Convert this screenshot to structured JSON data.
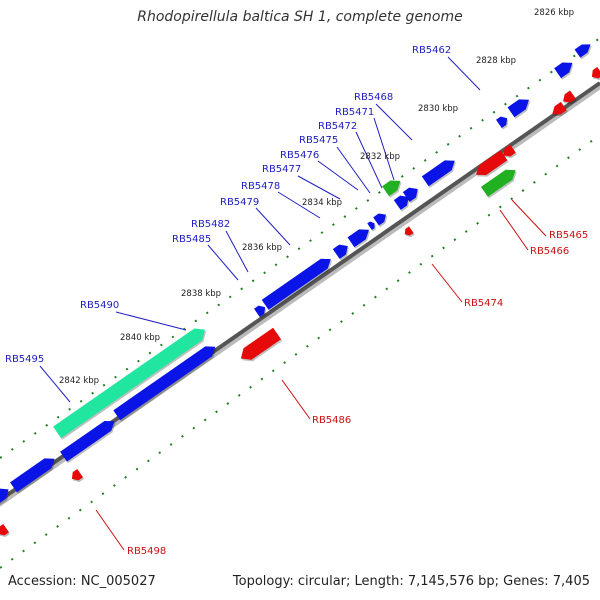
{
  "title": "Rhodopirellula baltica SH 1, complete genome",
  "accession": "Accession: NC_005027",
  "topology": "Topology: circular; Length: 7,145,576 bp; Genes: 7,405",
  "colors": {
    "forward_gene": "#0a14e6",
    "reverse_gene": "#e60a0a",
    "rna_gene": "#20b020",
    "highlight_gene": "#20e6a0",
    "backbone": "#666666",
    "tick_dots": "#208020",
    "label_forward": "#2020c0",
    "label_reverse": "#cc1010"
  },
  "ticks": [
    "2826 kbp",
    "2828 kbp",
    "2830 kbp",
    "2832 kbp",
    "2834 kbp",
    "2836 kbp",
    "2838 kbp",
    "2840 kbp",
    "2842 kbp"
  ],
  "forward_labels": [
    "RB5462",
    "RB5468",
    "RB5471",
    "RB5472",
    "RB5475",
    "RB5476",
    "RB5477",
    "RB5478",
    "RB5479",
    "RB5482",
    "RB5485",
    "RB5490",
    "RB5495"
  ],
  "reverse_labels": [
    "RB5465",
    "RB5466",
    "RB5474",
    "RB5486",
    "RB5498"
  ]
}
